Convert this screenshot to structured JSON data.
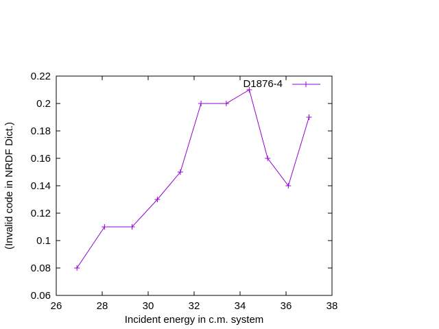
{
  "chart_data": {
    "type": "line",
    "title": "",
    "xlabel": "Incident energy in c.m. system",
    "ylabel": "(Invalid code in NRDF Dict.)",
    "xlim": [
      26,
      38
    ],
    "ylim": [
      0.06,
      0.22
    ],
    "xticks": [
      26,
      28,
      30,
      32,
      34,
      36,
      38
    ],
    "yticks": [
      0.06,
      0.08,
      0.1,
      0.12,
      0.14,
      0.16,
      0.18,
      0.2,
      0.22
    ],
    "xtick_labels": [
      "26",
      "28",
      "30",
      "32",
      "34",
      "36",
      "38"
    ],
    "ytick_labels": [
      "0.06",
      "0.08",
      "0.1",
      "0.12",
      "0.14",
      "0.16",
      "0.18",
      "0.2",
      "0.22"
    ],
    "grid": false,
    "legend_position": "top-right",
    "series": [
      {
        "name": "D1876-4",
        "color": "#9400d3",
        "marker": "plus",
        "x": [
          26.9,
          28.1,
          29.3,
          30.4,
          31.4,
          32.3,
          33.4,
          34.4,
          35.2,
          36.1,
          37.0
        ],
        "y": [
          0.08,
          0.11,
          0.11,
          0.13,
          0.15,
          0.2,
          0.2,
          0.21,
          0.16,
          0.14,
          0.19
        ]
      }
    ]
  }
}
